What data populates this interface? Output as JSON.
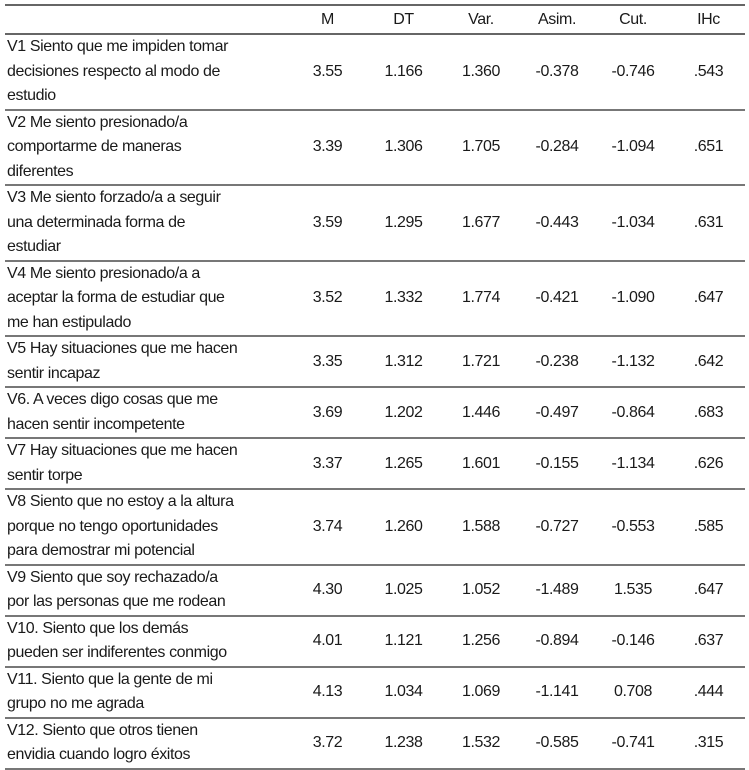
{
  "table": {
    "headers": [
      "",
      "M",
      "DT",
      "Var.",
      "Asim.",
      "Cut.",
      "IHc"
    ],
    "rows": [
      {
        "label": "V1 Siento que me impiden tomar\ndecisiones respecto al modo de\nestudio",
        "M": "3.55",
        "DT": "1.166",
        "Var": "1.360",
        "Asim": "-0.378",
        "Cut": "-0.746",
        "IHc": ".543"
      },
      {
        "label": "V2 Me siento presionado/a\ncomportarme de maneras\ndiferentes",
        "M": "3.39",
        "DT": "1.306",
        "Var": "1.705",
        "Asim": "-0.284",
        "Cut": "-1.094",
        "IHc": ".651"
      },
      {
        "label": "V3 Me siento forzado/a a seguir\nuna determinada forma de\nestudiar",
        "M": "3.59",
        "DT": "1.295",
        "Var": "1.677",
        "Asim": "-0.443",
        "Cut": "-1.034",
        "IHc": ".631"
      },
      {
        "label": "V4 Me siento presionado/a a\naceptar la forma de estudiar que\nme han estipulado",
        "M": "3.52",
        "DT": "1.332",
        "Var": "1.774",
        "Asim": "-0.421",
        "Cut": "-1.090",
        "IHc": ".647"
      },
      {
        "label": "V5 Hay situaciones que me hacen\nsentir incapaz",
        "M": "3.35",
        "DT": "1.312",
        "Var": "1.721",
        "Asim": "-0.238",
        "Cut": "-1.132",
        "IHc": ".642"
      },
      {
        "label": "V6. A veces digo cosas que me\nhacen sentir incompetente",
        "M": "3.69",
        "DT": "1.202",
        "Var": "1.446",
        "Asim": "-0.497",
        "Cut": "-0.864",
        "IHc": ".683"
      },
      {
        "label": "V7 Hay situaciones que me hacen\nsentir torpe",
        "M": "3.37",
        "DT": "1.265",
        "Var": "1.601",
        "Asim": "-0.155",
        "Cut": "-1.134",
        "IHc": ".626"
      },
      {
        "label": "V8 Siento que no estoy a la altura\nporque no tengo oportunidades\npara demostrar mi potencial",
        "M": "3.74",
        "DT": "1.260",
        "Var": "1.588",
        "Asim": "-0.727",
        "Cut": "-0.553",
        "IHc": ".585"
      },
      {
        "label": "V9 Siento que soy rechazado/a\npor las personas que me rodean",
        "M": "4.30",
        "DT": "1.025",
        "Var": "1.052",
        "Asim": "-1.489",
        "Cut": "1.535",
        "IHc": ".647"
      },
      {
        "label": "V10. Siento que los demás\npueden ser indiferentes conmigo",
        "M": "4.01",
        "DT": "1.121",
        "Var": "1.256",
        "Asim": "-0.894",
        "Cut": "-0.146",
        "IHc": ".637"
      },
      {
        "label": "V11. Siento que la gente de mi\ngrupo no me agrada",
        "M": "4.13",
        "DT": "1.034",
        "Var": "1.069",
        "Asim": "-1.141",
        "Cut": "0.708",
        "IHc": ".444"
      },
      {
        "label": "V12. Siento que otros tienen\nenvidia cuando logro éxitos",
        "M": "3.72",
        "DT": "1.238",
        "Var": "1.532",
        "Asim": "-0.585",
        "Cut": "-0.741",
        "IHc": ".315"
      }
    ]
  }
}
